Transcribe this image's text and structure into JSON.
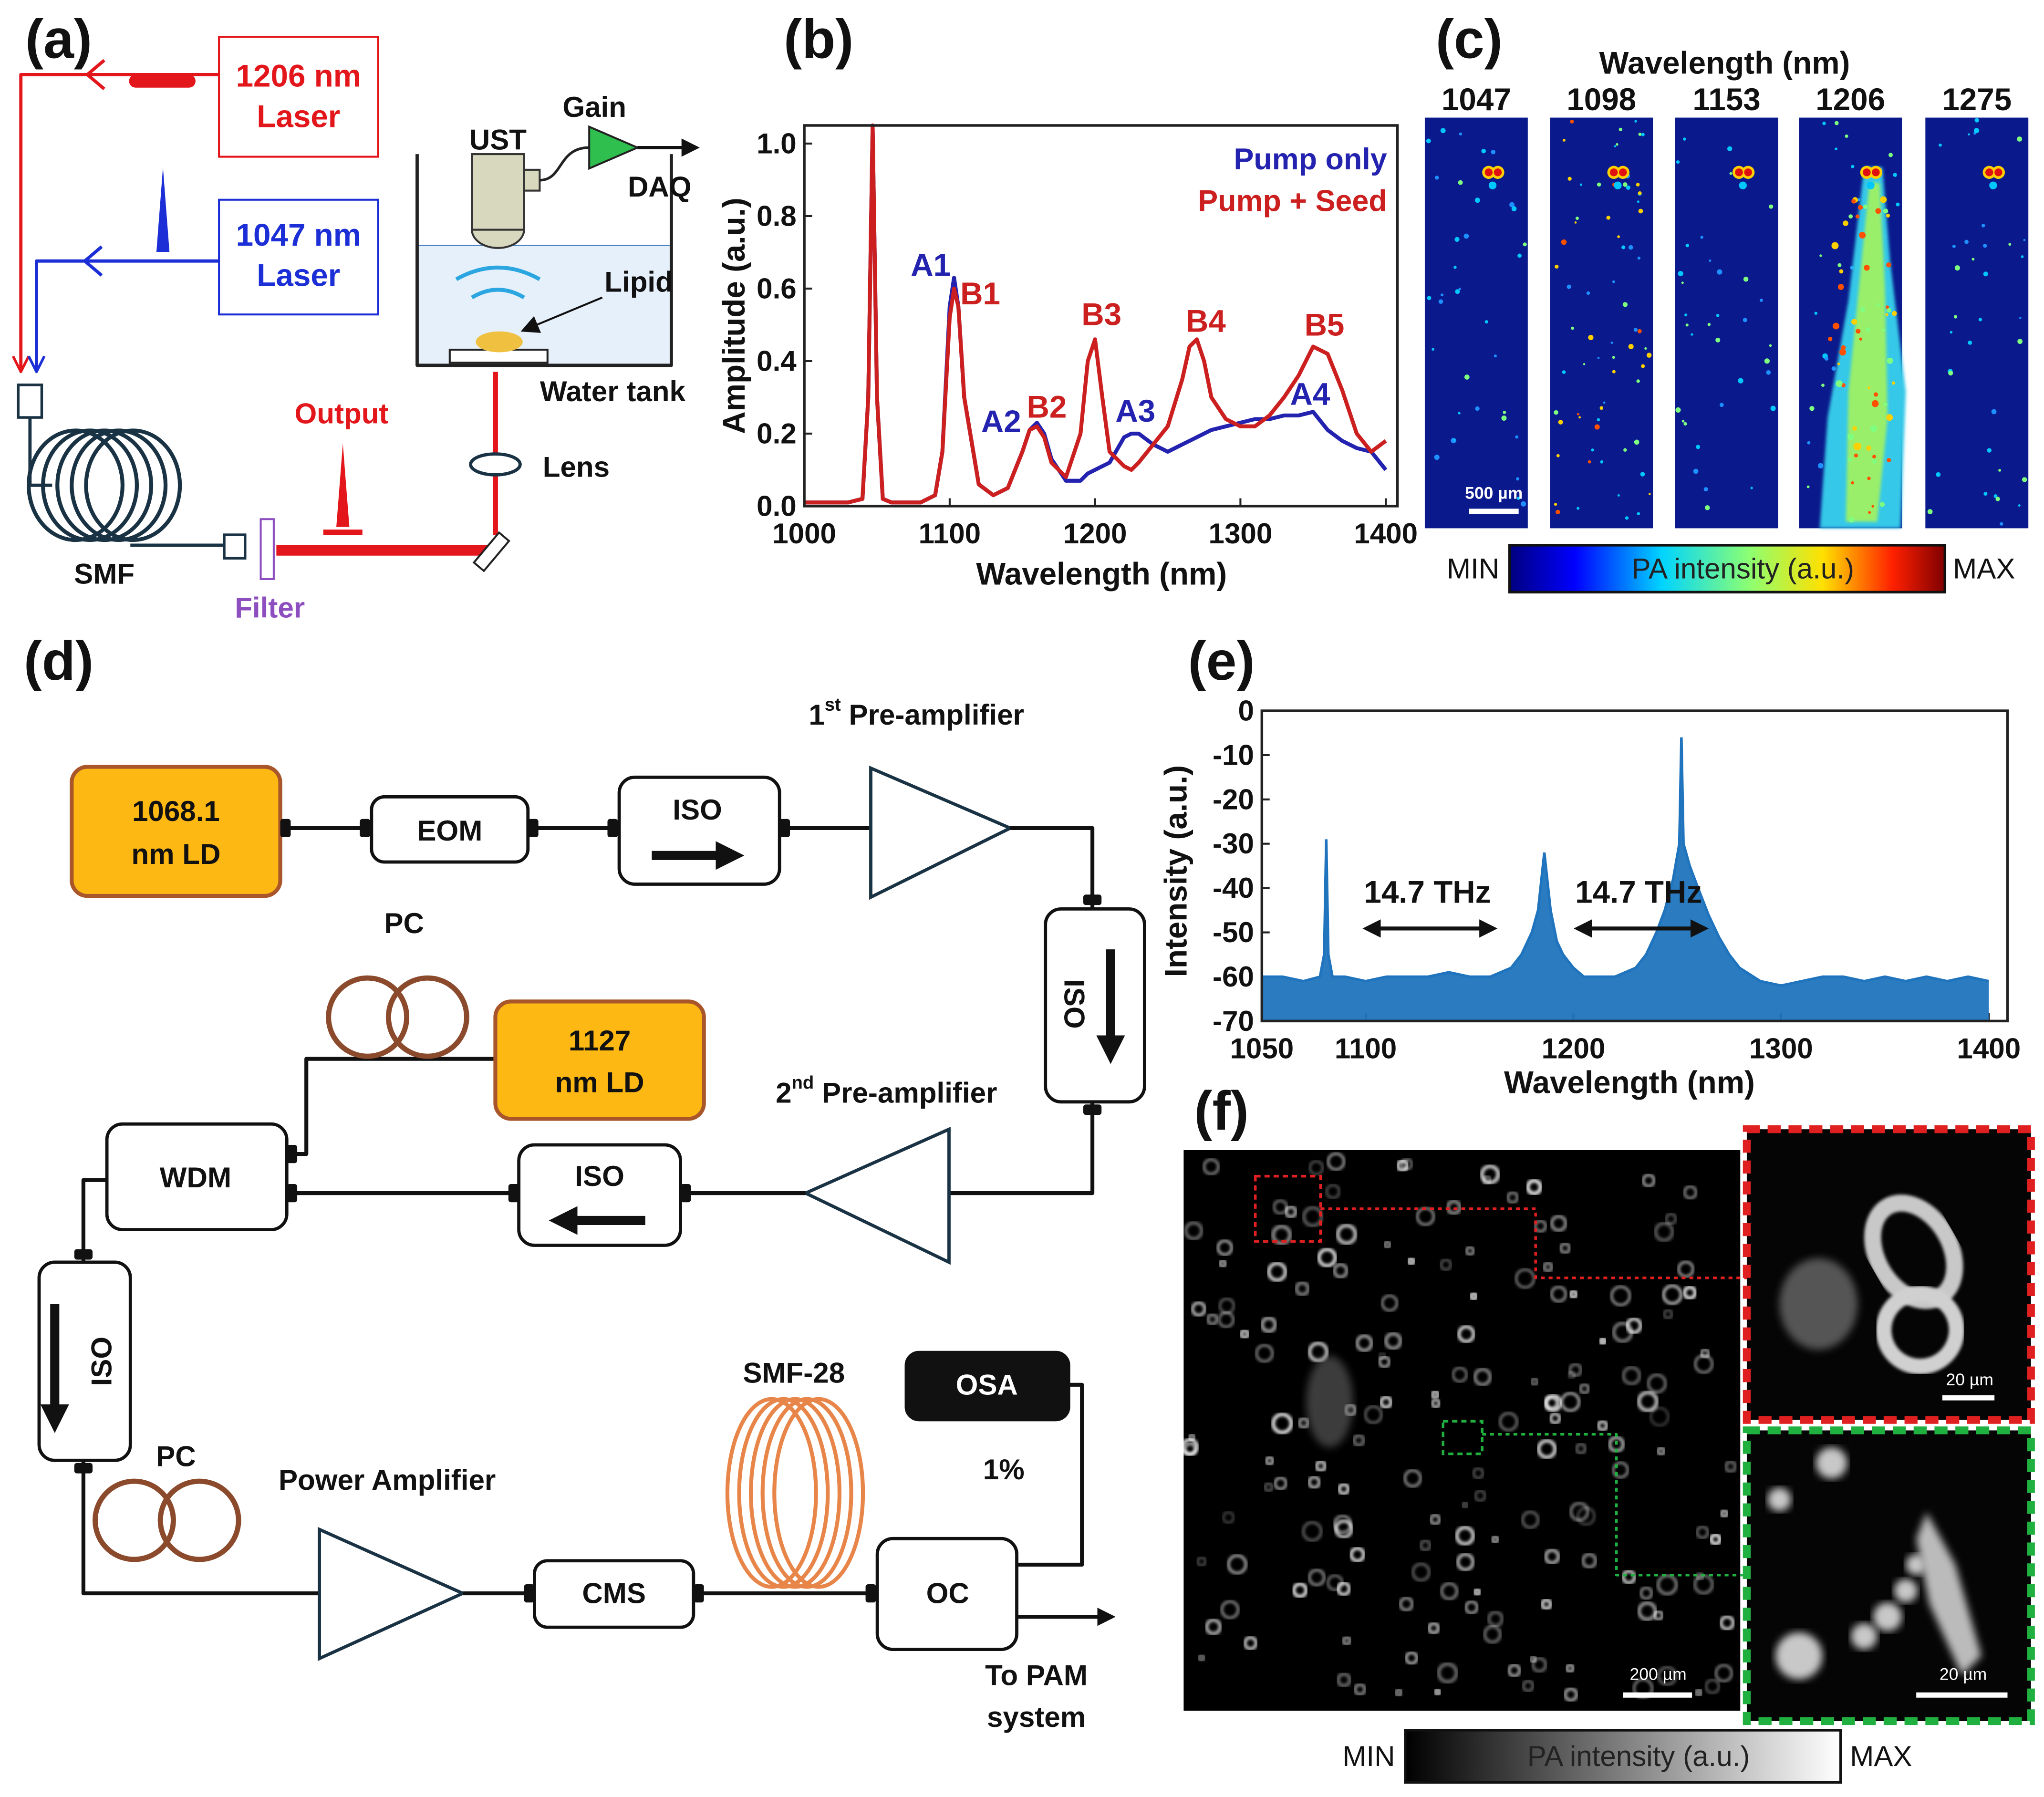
{
  "panel_labels": [
    "(a)",
    "(b)",
    "(c)",
    "(d)",
    "(e)",
    "(f)"
  ],
  "panel_a": {
    "laser_1206": [
      "1206 nm",
      "Laser"
    ],
    "laser_1047": [
      "1047 nm",
      "Laser"
    ],
    "ust": "UST",
    "gain": "Gain",
    "daq": "DAQ",
    "lipid": "Lipid",
    "water_tank": "Water tank",
    "output": "Output",
    "lens": "Lens",
    "smf": "SMF",
    "filter": "Filter"
  },
  "chart_data": [
    {
      "type": "line",
      "xlabel": "Wavelength (nm)",
      "ylabel": "Amplitude (a.u.)",
      "x": [
        1000,
        1010,
        1020,
        1030,
        1040,
        1044,
        1047,
        1050,
        1054,
        1060,
        1070,
        1080,
        1090,
        1095,
        1100,
        1103,
        1106,
        1110,
        1120,
        1130,
        1140,
        1150,
        1155,
        1160,
        1165,
        1170,
        1180,
        1190,
        1195,
        1200,
        1205,
        1210,
        1220,
        1225,
        1230,
        1240,
        1250,
        1260,
        1265,
        1270,
        1275,
        1280,
        1290,
        1300,
        1310,
        1320,
        1330,
        1340,
        1350,
        1360,
        1370,
        1380,
        1390,
        1400
      ],
      "series": [
        {
          "name": "Pump only",
          "color": "#2323b0",
          "values": [
            0.01,
            0.01,
            0.01,
            0.01,
            0.02,
            0.3,
            1.05,
            0.3,
            0.02,
            0.01,
            0.01,
            0.01,
            0.03,
            0.15,
            0.55,
            0.63,
            0.55,
            0.3,
            0.06,
            0.03,
            0.05,
            0.15,
            0.21,
            0.23,
            0.2,
            0.13,
            0.07,
            0.07,
            0.09,
            0.1,
            0.11,
            0.12,
            0.19,
            0.2,
            0.2,
            0.17,
            0.15,
            0.17,
            0.18,
            0.19,
            0.2,
            0.21,
            0.22,
            0.23,
            0.24,
            0.24,
            0.25,
            0.25,
            0.26,
            0.21,
            0.18,
            0.16,
            0.15,
            0.1
          ]
        },
        {
          "name": "Pump + Seed",
          "color": "#cc1f1f",
          "values": [
            0.01,
            0.01,
            0.01,
            0.01,
            0.02,
            0.3,
            1.05,
            0.3,
            0.02,
            0.01,
            0.01,
            0.01,
            0.03,
            0.15,
            0.52,
            0.6,
            0.55,
            0.3,
            0.06,
            0.03,
            0.05,
            0.15,
            0.21,
            0.22,
            0.19,
            0.12,
            0.08,
            0.2,
            0.4,
            0.46,
            0.3,
            0.15,
            0.11,
            0.1,
            0.12,
            0.17,
            0.22,
            0.35,
            0.44,
            0.46,
            0.4,
            0.3,
            0.24,
            0.22,
            0.22,
            0.25,
            0.3,
            0.36,
            0.44,
            0.42,
            0.32,
            0.2,
            0.15,
            0.18
          ]
        }
      ],
      "xlim": [
        1000,
        1408
      ],
      "ylim": [
        0,
        1.05
      ],
      "xticks": [
        1000,
        1100,
        1200,
        1300,
        1400
      ],
      "yticks": [
        {
          "value": 0,
          "label": "0.0"
        },
        0.2,
        0.4,
        0.6,
        0.8,
        {
          "value": 1,
          "label": "1.0"
        }
      ],
      "legend": "upper right",
      "annotations": [
        {
          "text": "A1",
          "color": "#2323b0"
        },
        {
          "text": "B1",
          "color": "#cc1f1f"
        },
        {
          "text": "A2",
          "color": "#2323b0"
        },
        {
          "text": "B2",
          "color": "#cc1f1f"
        },
        {
          "text": "B3",
          "color": "#cc1f1f"
        },
        {
          "text": "A3",
          "color": "#2323b0"
        },
        {
          "text": "B4",
          "color": "#cc1f1f"
        },
        {
          "text": "B5",
          "color": "#cc1f1f"
        },
        {
          "text": "A4",
          "color": "#2323b0"
        }
      ]
    },
    {
      "type": "area",
      "xlabel": "Wavelength (nm)",
      "ylabel": "Intensity (a.u.)",
      "x": [
        1050,
        1060,
        1070,
        1078,
        1080,
        1081,
        1082,
        1084,
        1090,
        1100,
        1110,
        1120,
        1130,
        1140,
        1150,
        1160,
        1170,
        1175,
        1180,
        1183,
        1186,
        1189,
        1192,
        1195,
        1200,
        1205,
        1210,
        1220,
        1230,
        1235,
        1240,
        1244,
        1248,
        1251,
        1252,
        1253,
        1256,
        1260,
        1265,
        1270,
        1275,
        1280,
        1290,
        1300,
        1310,
        1320,
        1330,
        1340,
        1350,
        1360,
        1370,
        1380,
        1390,
        1400
      ],
      "values": [
        -60,
        -60,
        -61,
        -60,
        -55,
        -29,
        -55,
        -60,
        -60,
        -61,
        -60,
        -60,
        -60,
        -59,
        -60,
        -60,
        -58,
        -55,
        -50,
        -45,
        -32,
        -45,
        -52,
        -55,
        -58,
        -60,
        -60,
        -60,
        -58,
        -55,
        -50,
        -45,
        -38,
        -30,
        -6,
        -30,
        -35,
        -40,
        -46,
        -51,
        -55,
        -58,
        -61,
        -62,
        -61,
        -60,
        -60,
        -61,
        -60,
        -61,
        -60,
        -61,
        -60,
        -61
      ],
      "color": "#1f74bd",
      "xlim": [
        1050,
        1409
      ],
      "ylim": [
        -70,
        0
      ],
      "xticks": [
        1050,
        1100,
        1200,
        1300,
        1400
      ],
      "yticks": [
        0,
        -10,
        -20,
        -30,
        -40,
        -50,
        -60,
        -70
      ],
      "annotations": [
        {
          "text": "14.7 THz"
        },
        {
          "text": "14.7 THz"
        }
      ]
    }
  ],
  "panel_c": {
    "title": "Wavelength (nm)",
    "wavelengths": [
      1047,
      1098,
      1153,
      1206,
      1275
    ],
    "scale_bar": "500 µm",
    "colorbar": {
      "min": "MIN",
      "label": "PA intensity (a.u.)",
      "max": "MAX"
    }
  },
  "panel_d": {
    "ld1": [
      "1068.1",
      "nm LD"
    ],
    "eom": "EOM",
    "iso": [
      "ISO",
      "ISO",
      "ISO",
      "ISO"
    ],
    "pre_amp_1": [
      "1",
      "st",
      " Pre-amplifier"
    ],
    "pc": [
      "PC",
      "PC"
    ],
    "ld2": [
      "1127",
      "nm LD"
    ],
    "pre_amp_2": [
      "2",
      "nd",
      " Pre-amplifier"
    ],
    "wdm": "WDM",
    "power_amp": "Power Amplifier",
    "cms": "CMS",
    "smf": "SMF-28",
    "osa": "OSA",
    "ratio": "1%",
    "oc": "OC",
    "output": [
      "To PAM",
      "system"
    ]
  },
  "panel_f": {
    "scale_bars": [
      "200 µm",
      "20 µm",
      "20 µm"
    ],
    "colorbar": {
      "min": "MIN",
      "label": "PA intensity (a.u.)",
      "max": "MAX"
    }
  }
}
